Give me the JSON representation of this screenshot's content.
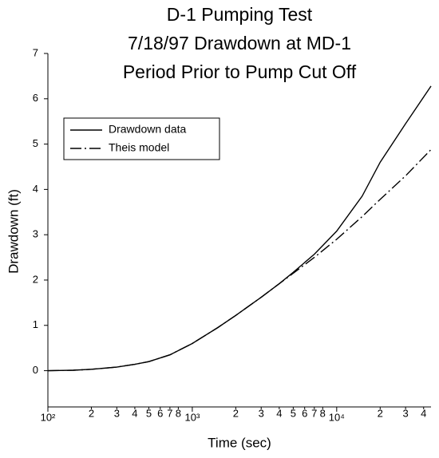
{
  "chart_data": {
    "type": "line",
    "title": [
      "D-1 Pumping Test",
      "7/18/97 Drawdown at MD-1",
      "Period Prior to Pump Cut Off"
    ],
    "x_label": "Time (sec)",
    "y_label": "Drawdown (ft)",
    "x_scale": "log",
    "xlim": [
      100,
      45000
    ],
    "ylim": [
      -0.8,
      7
    ],
    "xticks": [
      {
        "value": 100,
        "label": "10²"
      },
      {
        "value": 200,
        "label": "2"
      },
      {
        "value": 300,
        "label": "3"
      },
      {
        "value": 400,
        "label": "4"
      },
      {
        "value": 500,
        "label": "5"
      },
      {
        "value": 600,
        "label": "6"
      },
      {
        "value": 700,
        "label": "7"
      },
      {
        "value": 800,
        "label": "8"
      },
      {
        "value": 1000,
        "label": "10³"
      },
      {
        "value": 2000,
        "label": "2"
      },
      {
        "value": 3000,
        "label": "3"
      },
      {
        "value": 4000,
        "label": "4"
      },
      {
        "value": 5000,
        "label": "5"
      },
      {
        "value": 6000,
        "label": "6"
      },
      {
        "value": 7000,
        "label": "7"
      },
      {
        "value": 8000,
        "label": "8"
      },
      {
        "value": 10000,
        "label": "10⁴"
      },
      {
        "value": 20000,
        "label": "2"
      },
      {
        "value": 30000,
        "label": "3"
      },
      {
        "value": 40000,
        "label": "4"
      }
    ],
    "yticks": [
      0,
      1,
      2,
      3,
      4,
      5,
      6,
      7
    ],
    "legend": "upper left",
    "x": [
      100,
      150,
      200,
      300,
      400,
      500,
      700,
      1000,
      1500,
      2000,
      3000,
      4000,
      5000,
      7000,
      10000,
      15000,
      20000,
      30000,
      45000
    ],
    "series": [
      {
        "name": "Drawdown data",
        "color": "#000000",
        "dash": "solid",
        "values": [
          0,
          0.01,
          0.03,
          0.08,
          0.14,
          0.2,
          0.35,
          0.6,
          0.95,
          1.22,
          1.62,
          1.92,
          2.17,
          2.57,
          3.08,
          3.85,
          4.6,
          5.45,
          6.28
        ]
      },
      {
        "name": "Theis model",
        "color": "#000000",
        "dash": "dashdot",
        "values": [
          0,
          0.01,
          0.03,
          0.08,
          0.14,
          0.2,
          0.35,
          0.6,
          0.95,
          1.22,
          1.62,
          1.92,
          2.15,
          2.5,
          2.9,
          3.4,
          3.78,
          4.3,
          4.88
        ]
      }
    ]
  }
}
